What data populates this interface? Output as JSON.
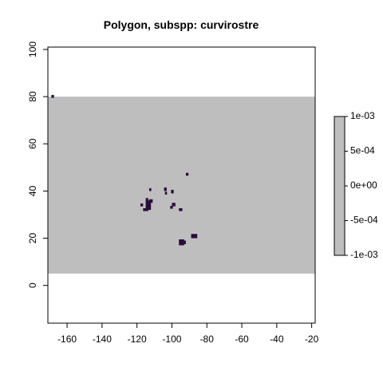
{
  "chart_data": {
    "type": "heatmap",
    "title": "Polygon, subspp: curvirostre",
    "xlabel": "",
    "ylabel": "",
    "xlim": [
      -171,
      -18
    ],
    "ylim": [
      -16,
      101
    ],
    "x_ticks": [
      -160,
      -140,
      -120,
      -100,
      -80,
      -60,
      -40,
      -20
    ],
    "x_tick_labels": [
      "-160",
      "-140",
      "-120",
      "-100",
      "-80",
      "-60",
      "-40",
      "-20"
    ],
    "y_ticks": [
      0,
      20,
      40,
      60,
      80,
      100
    ],
    "y_tick_labels": [
      "0",
      "20",
      "40",
      "60",
      "80",
      "100"
    ],
    "raster_extent": {
      "x": [
        -171,
        -18
      ],
      "y": [
        5,
        80
      ]
    },
    "raster_color": "#bebebe",
    "cell_color": "#2d0a3a",
    "cells": [
      {
        "x": -169,
        "y": 79.5,
        "w": 1.5,
        "h": 1.2
      },
      {
        "x": -113,
        "y": 40,
        "w": 1.2,
        "h": 1.2
      },
      {
        "x": -104.5,
        "y": 40,
        "w": 1.5,
        "h": 1.5
      },
      {
        "x": -104,
        "y": 38.5,
        "w": 1.2,
        "h": 1.2
      },
      {
        "x": -100.5,
        "y": 39,
        "w": 1.5,
        "h": 1.5
      },
      {
        "x": -92,
        "y": 46.5,
        "w": 1.5,
        "h": 1.2
      },
      {
        "x": -118,
        "y": 33.5,
        "w": 1.5,
        "h": 1.2
      },
      {
        "x": -115,
        "y": 35.5,
        "w": 1.5,
        "h": 1.5
      },
      {
        "x": -113,
        "y": 35,
        "w": 2,
        "h": 1.5
      },
      {
        "x": -115,
        "y": 32,
        "w": 3,
        "h": 4
      },
      {
        "x": -116.5,
        "y": 31.5,
        "w": 3,
        "h": 1.2
      },
      {
        "x": -100,
        "y": 33.5,
        "w": 2,
        "h": 1.5
      },
      {
        "x": -101,
        "y": 32.5,
        "w": 1.5,
        "h": 1.2
      },
      {
        "x": -96,
        "y": 31.5,
        "w": 2,
        "h": 1.2
      },
      {
        "x": -89,
        "y": 20,
        "w": 3.5,
        "h": 1.8
      },
      {
        "x": -96,
        "y": 17,
        "w": 3,
        "h": 2.5
      },
      {
        "x": -95,
        "y": 17.5,
        "w": 3,
        "h": 1.5
      }
    ],
    "legend": {
      "position": "right",
      "labels": [
        "1e-03",
        "5e-04",
        "0e+00",
        "-5e-04",
        "-1e-03"
      ],
      "values": [
        0.001,
        0.0005,
        0,
        -0.0005,
        -0.001
      ],
      "color": "#bebebe"
    }
  }
}
